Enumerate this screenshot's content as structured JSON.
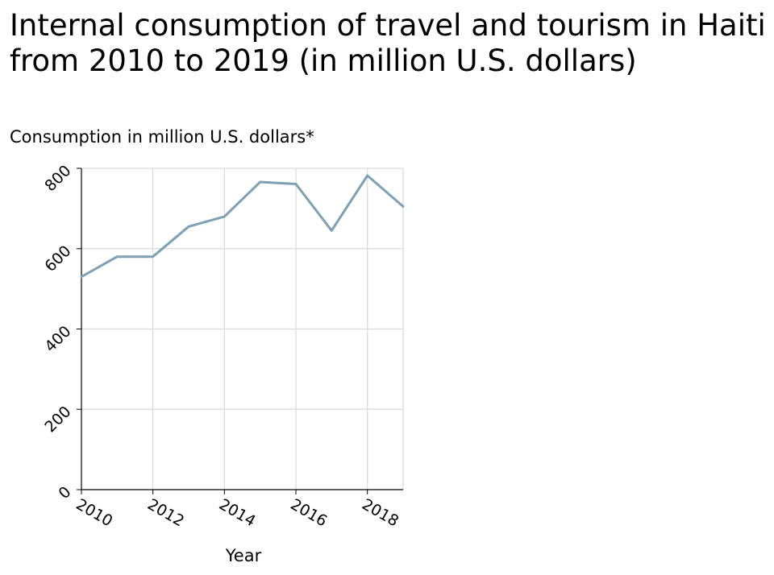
{
  "chart_data": {
    "type": "line",
    "title": "Internal consumption of travel and tourism in Haiti from 2010 to 2019 (in million U.S. dollars)",
    "ylabel": "Consumption in million U.S. dollars*",
    "xlabel": "Year",
    "x": [
      2010,
      2011,
      2012,
      2013,
      2014,
      2015,
      2016,
      2017,
      2018,
      2019
    ],
    "series": [
      {
        "values": [
          530,
          580,
          580,
          655,
          680,
          766,
          761,
          645,
          782,
          705
        ]
      }
    ],
    "xlim": [
      2010,
      2019
    ],
    "ylim": [
      0,
      800
    ],
    "x_ticks": [
      "2010",
      "2012",
      "2014",
      "2016",
      "2018"
    ],
    "x_tick_values": [
      2010,
      2012,
      2014,
      2016,
      2018
    ],
    "y_ticks": [
      "0",
      "200",
      "400",
      "600",
      "800"
    ],
    "y_tick_values": [
      0,
      200,
      400,
      600,
      800
    ],
    "grid": true,
    "line_color": "#7f9fb3",
    "grid_color": "#d9d9d9"
  }
}
